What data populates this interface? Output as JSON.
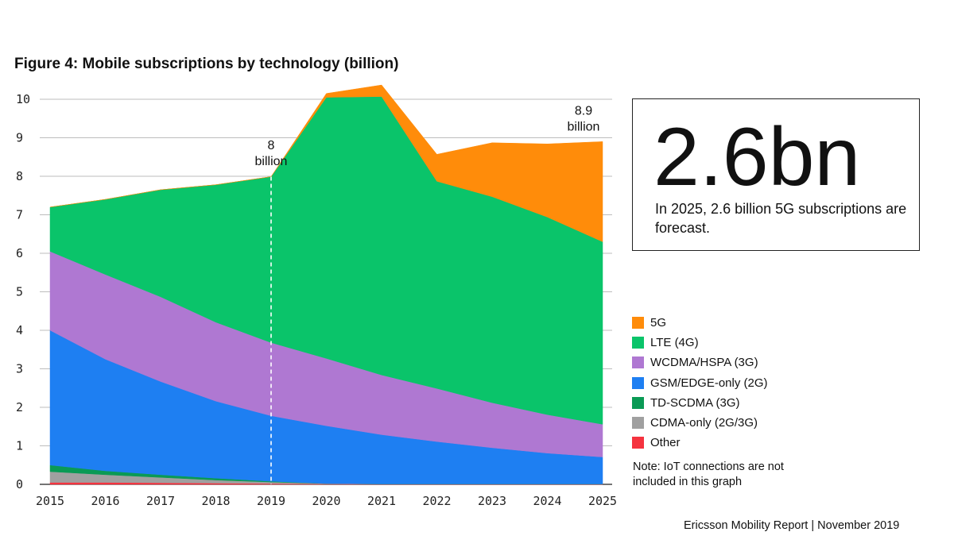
{
  "title": "Figure 4: Mobile subscriptions by technology (billion)",
  "callout": {
    "headline": "2.6bn",
    "description": "In 2025, 2.6 billion 5G subscriptions are forecast."
  },
  "note": "Note: IoT connections are not included in this graph",
  "footer": "Ericsson Mobility Report  |  November 2019",
  "annotations": [
    {
      "value_label": "8",
      "unit_label": "billion",
      "x": 2019,
      "y": 8
    },
    {
      "value_label": "8.9",
      "unit_label": "billion",
      "x": 2025,
      "y": 8.9
    }
  ],
  "chart_data": {
    "type": "area",
    "stacked": true,
    "title": "Figure 4: Mobile subscriptions by technology (billion)",
    "xlabel": "",
    "ylabel": "",
    "x": [
      2015,
      2016,
      2017,
      2018,
      2019,
      2020,
      2021,
      2022,
      2023,
      2024,
      2025
    ],
    "ylim": [
      0,
      10
    ],
    "yticks": [
      0,
      1,
      2,
      3,
      4,
      5,
      6,
      7,
      8,
      9,
      10
    ],
    "grid": true,
    "legend_position": "right",
    "forecast_divider_x": 2019,
    "series": [
      {
        "name": "Other",
        "color": "#f5333f",
        "values": [
          0.05,
          0.05,
          0.04,
          0.03,
          0.02,
          0.01,
          0.01,
          0.01,
          0.01,
          0.01,
          0.01
        ]
      },
      {
        "name": "CDMA-only (2G/3G)",
        "color": "#a0a0a0",
        "values": [
          0.28,
          0.2,
          0.14,
          0.08,
          0.04,
          0.01,
          0,
          0,
          0,
          0,
          0
        ]
      },
      {
        "name": "TD-SCDMA (3G)",
        "color": "#0a9a55",
        "values": [
          0.17,
          0.1,
          0.07,
          0.05,
          0.02,
          0,
          0,
          0,
          0,
          0,
          0
        ]
      },
      {
        "name": "GSM/EDGE-only (2G)",
        "color": "#1e7ff2",
        "values": [
          3.5,
          2.9,
          2.42,
          2.0,
          1.7,
          1.5,
          1.28,
          1.1,
          0.94,
          0.8,
          0.7
        ]
      },
      {
        "name": "WCDMA/HSPA (3G)",
        "color": "#af78d2",
        "values": [
          2.05,
          2.2,
          2.2,
          2.05,
          1.9,
          1.75,
          1.55,
          1.38,
          1.17,
          1.0,
          0.85
        ]
      },
      {
        "name": "LTE (4G)",
        "color": "#0ac46a",
        "values": [
          1.15,
          1.95,
          2.78,
          3.57,
          4.31,
          6.78,
          7.23,
          5.38,
          5.35,
          5.13,
          4.74
        ]
      },
      {
        "name": "5G",
        "color": "#ff8c0a",
        "values": [
          0,
          0,
          0,
          0,
          0,
          0.1,
          0.3,
          0.7,
          1.4,
          1.9,
          2.6
        ]
      }
    ]
  }
}
